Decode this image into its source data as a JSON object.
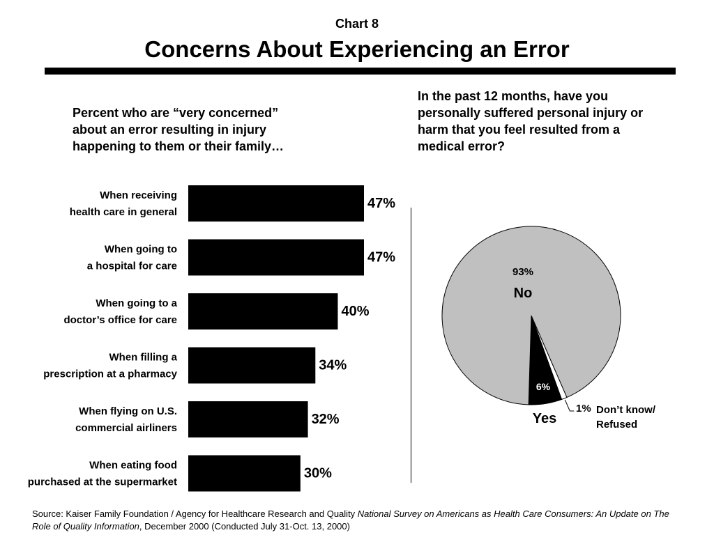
{
  "header": {
    "chart_label": "Chart 8",
    "title": "Concerns About Experiencing an Error"
  },
  "left_panel": {
    "heading_lines": [
      "Percent who are “very concerned”",
      "about an error resulting in injury",
      "happening to them or their family…"
    ]
  },
  "right_panel": {
    "heading_lines": [
      "In the past 12 months, have you",
      "personally suffered personal injury or",
      "harm that you feel resulted from a",
      "medical error?"
    ]
  },
  "source": {
    "prefix": "Source: Kaiser Family Foundation / Agency for Healthcare Research and Quality ",
    "italic": "National Survey on Americans as Health Care Consumers:  An Update on The Role of Quality Information",
    "suffix": ", December 2000 (Conducted July 31-Oct. 13, 2000)"
  },
  "colors": {
    "bar": "#000000",
    "no_slice": "#c0c0c0",
    "yes_slice": "#000000",
    "dk_slice": "#ffffff"
  },
  "chart_data": [
    {
      "type": "bar",
      "orientation": "horizontal",
      "categories": [
        [
          "When receiving",
          "health care in general"
        ],
        [
          "When going to",
          "a hospital for care"
        ],
        [
          "When going to a",
          "doctor’s office for care"
        ],
        [
          "When filling a",
          "prescription at a pharmacy"
        ],
        [
          "When flying on U.S.",
          "commercial airliners"
        ],
        [
          "When eating food",
          "purchased at the supermarket"
        ]
      ],
      "values": [
        47,
        47,
        40,
        34,
        32,
        30
      ],
      "value_labels": [
        "47%",
        "47%",
        "40%",
        "34%",
        "32%",
        "30%"
      ],
      "title": "",
      "xlabel": "",
      "ylabel": "",
      "xlim": [
        0,
        100
      ],
      "grid": false,
      "legend": "none"
    },
    {
      "type": "pie",
      "slices": [
        {
          "label": "No",
          "value": 93,
          "value_label": "93%"
        },
        {
          "label": "Yes",
          "value": 6,
          "value_label": "6%"
        },
        {
          "label_lines": [
            "Don’t know/",
            "Refused"
          ],
          "value": 1,
          "value_label": "1%"
        }
      ],
      "title": "",
      "legend": "none"
    }
  ]
}
